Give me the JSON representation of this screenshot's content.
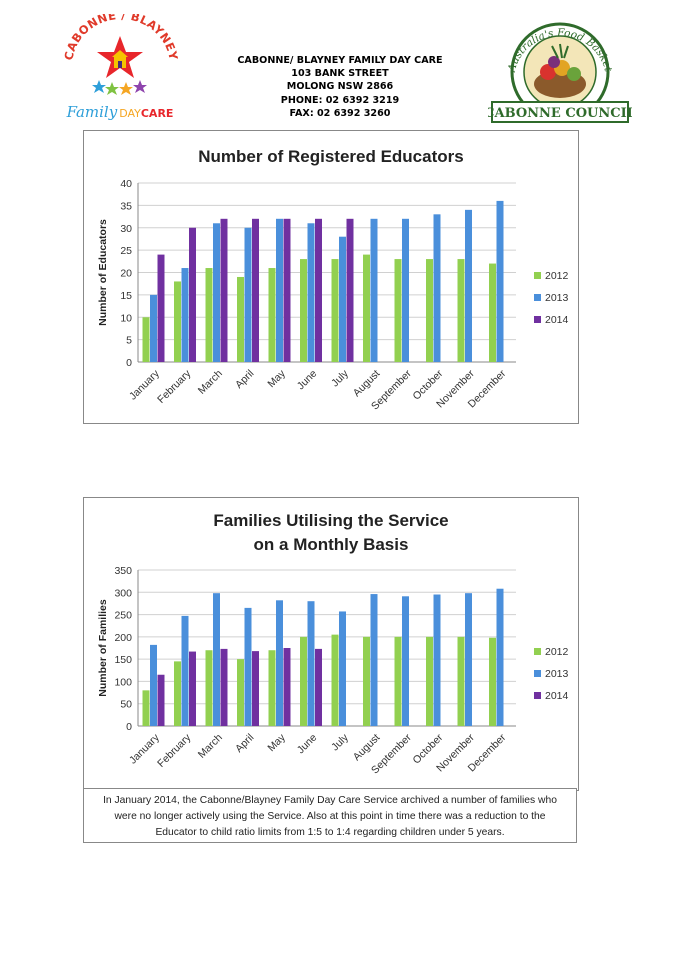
{
  "header": {
    "lines": [
      "CABONNE/ BLAYNEY FAMILY DAY CARE",
      "103 BANK STREET",
      "MOLONG NSW 2866",
      "PHONE: 02 6392 3219",
      "FAX: 02 6392 3260"
    ]
  },
  "logo_left": {
    "arc_text": "CABONNE / BLAYNEY",
    "word_family": "Family",
    "word_day": "DAY",
    "word_care": "CARE"
  },
  "logo_right": {
    "arc_text": "Australia's Food Basket",
    "banner": "CABONNE COUNCIL"
  },
  "colors": {
    "s2012": "#92d050",
    "s2013": "#4a8fdb",
    "s2014": "#7030a0",
    "grid": "#d0d0d0",
    "axis": "#888888"
  },
  "chart_data": [
    {
      "type": "bar",
      "title": "Number of Registered Educators",
      "title_lines": [
        "Number of Registered Educators"
      ],
      "ylabel": "Number of Educators",
      "xlabel": "",
      "ylim": [
        0,
        40
      ],
      "ytick_step": 5,
      "legend_position": "right",
      "categories": [
        "January",
        "February",
        "March",
        "April",
        "May",
        "June",
        "July",
        "August",
        "September",
        "October",
        "November",
        "December"
      ],
      "series": [
        {
          "name": "2012",
          "values": [
            10,
            18,
            21,
            19,
            21,
            23,
            23,
            24,
            23,
            23,
            23,
            22
          ]
        },
        {
          "name": "2013",
          "values": [
            15,
            21,
            31,
            30,
            32,
            31,
            28,
            32,
            32,
            33,
            34,
            36
          ]
        },
        {
          "name": "2014",
          "values": [
            24,
            30,
            32,
            32,
            32,
            32,
            32,
            null,
            null,
            null,
            null,
            null
          ]
        }
      ]
    },
    {
      "type": "bar",
      "title": "Families Utilising the Service on a Monthly Basis",
      "title_lines": [
        "Families Utilising the Service",
        "on a Monthly Basis"
      ],
      "ylabel": "Number of Families",
      "xlabel": "",
      "ylim": [
        0,
        350
      ],
      "ytick_step": 50,
      "legend_position": "right",
      "categories": [
        "January",
        "February",
        "March",
        "April",
        "May",
        "June",
        "July",
        "August",
        "September",
        "October",
        "November",
        "December"
      ],
      "series": [
        {
          "name": "2012",
          "values": [
            80,
            145,
            170,
            150,
            170,
            200,
            205,
            200,
            200,
            200,
            200,
            198
          ]
        },
        {
          "name": "2013",
          "values": [
            182,
            247,
            298,
            265,
            282,
            280,
            257,
            296,
            291,
            295,
            298,
            308
          ]
        },
        {
          "name": "2014",
          "values": [
            115,
            167,
            173,
            168,
            175,
            173,
            null,
            null,
            null,
            null,
            null,
            null
          ]
        }
      ]
    }
  ],
  "note": {
    "lines": [
      "In January 2014, the Cabonne/Blayney Family Day Care Service archived a number of families who",
      "were no longer actively using the Service. Also at this point in time there was a reduction to the",
      "Educator to child ratio limits from 1:5 to 1:4 regarding children under 5 years."
    ]
  }
}
